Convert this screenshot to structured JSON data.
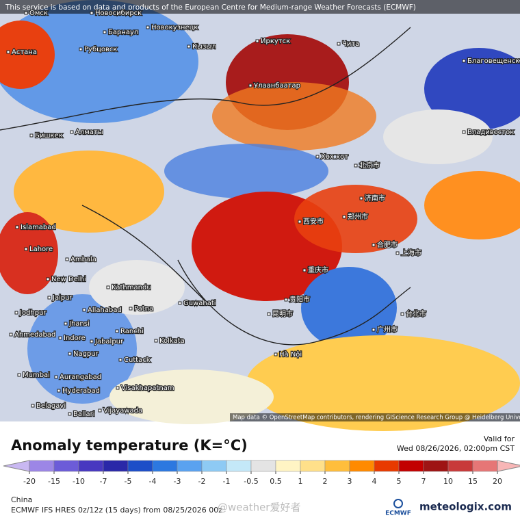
{
  "banner": "This service is based on data and products of the European Centre for Medium-range Weather Forecasts (ECMWF)",
  "attribution": "Map data © OpenStreetMap contributors, rendering GIScience Research Group @ Heidelberg University",
  "cities": [
    "Омск",
    "Новосибирск",
    "Астана",
    "Барнаул",
    "Новокузнецк",
    "Рубцовск",
    "Кызыл",
    "Иркутск",
    "Чита",
    "Улаанбаатар",
    "Благовещенск",
    "Владивосток",
    "Бишкек",
    "Алматы",
    "Хөх хот",
    "北京市",
    "济南市",
    "郑州市",
    "西安市",
    "合肥市",
    "上海市",
    "重庆市",
    "昆明市",
    "贵阳市",
    "广州市",
    "台北市",
    "Islamabad",
    "Lahore",
    "Ambala",
    "New Delhi",
    "Kathmandu",
    "Jaipur",
    "Jodhpur",
    "Jhansi",
    "Allahabad",
    "Patna",
    "Guwahati",
    "Ahmedabad",
    "Indore",
    "Ranchi",
    "Kolkata",
    "Jabalpur",
    "Nagpur",
    "Cuttack",
    "Mumbai",
    "Aurangabad",
    "Hyderabad",
    "Visakhapatnam",
    "Belagavi",
    "Ballari",
    "Vijayawada",
    "Hà Nội"
  ],
  "title": "Anomaly temperature (K=°C)",
  "valid_label": "Valid for",
  "valid_time": "Wed 08/26/2026, 02:00pm CST",
  "colorbar": {
    "ticks": [
      -20,
      -15,
      -10,
      -7,
      -5,
      -4,
      -3,
      -2,
      -1,
      -0.5,
      0.5,
      1,
      2,
      3,
      4,
      5,
      7,
      10,
      15,
      20
    ],
    "colors": [
      "#c9b8f2",
      "#9c86e6",
      "#6c5cd8",
      "#4838c0",
      "#2a28a8",
      "#1c4ec8",
      "#2c78e0",
      "#5aa2f0",
      "#8ecaf4",
      "#c4e8f8",
      "#e4e4e4",
      "#fff4c4",
      "#ffe08a",
      "#ffbe3c",
      "#ff8a00",
      "#e83a00",
      "#c20000",
      "#9e1414",
      "#c83a3a",
      "#e67676",
      "#f8b6b6"
    ]
  },
  "region": "China",
  "model": "ECMWF IFS HRES 0z/12z (15 days) from 08/25/2026 00z",
  "watermark": "@weather爱好者",
  "logo_left": "ECMWF",
  "logo_right": "meteologix.com"
}
